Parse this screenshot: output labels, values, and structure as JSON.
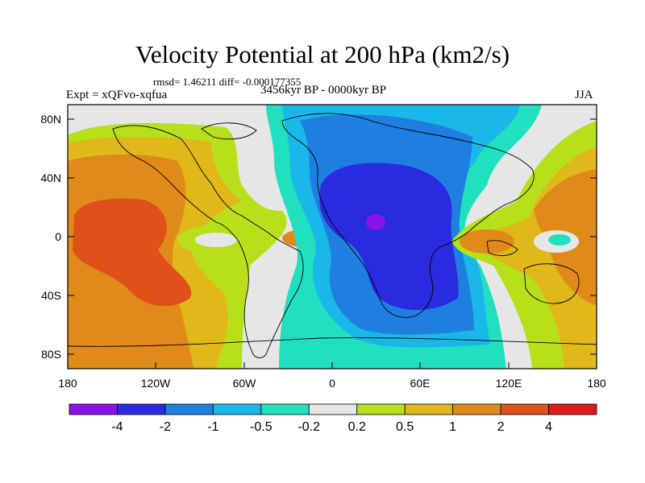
{
  "title": "Velocity Potential at 200 hPa (km2/s)",
  "stats": "rmsd= 1.46211 diff= -0.000177355",
  "experiment": "Expt = xQFvo-xqfua",
  "period": "3456kyr BP - 0000kyr BP",
  "season": "JJA",
  "map": {
    "lat_ticks": [
      "80N",
      "40N",
      "0",
      "40S",
      "80S"
    ],
    "lon_ticks": [
      "180",
      "120W",
      "60W",
      "0",
      "60E",
      "120E",
      "180"
    ]
  },
  "colorbar": {
    "labels": [
      "-4",
      "-2",
      "-1",
      "-0.5",
      "-0.2",
      "0.2",
      "0.5",
      "1",
      "2",
      "4"
    ],
    "colors": [
      "#8a12e8",
      "#2a2ae0",
      "#1e7fe0",
      "#1ab8e8",
      "#20e0c0",
      "#e6e6e6",
      "#b8e01a",
      "#e0b81a",
      "#e08a1a",
      "#e0501a",
      "#e01a1a"
    ]
  },
  "palette": {
    "land_lines": "#000000",
    "plot_border": "#000000"
  }
}
